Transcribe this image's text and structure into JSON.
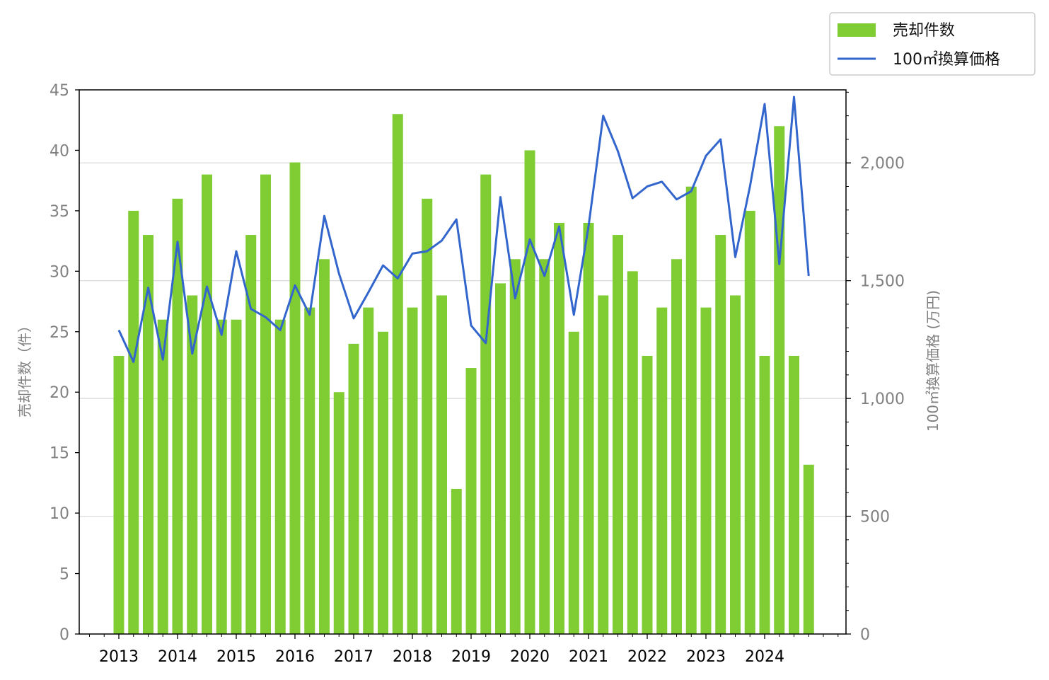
{
  "chart_data": {
    "type": "bar+line",
    "x_tick_labels": [
      "2013",
      "2014",
      "2015",
      "2016",
      "2017",
      "2018",
      "2019",
      "2020",
      "2021",
      "2022",
      "2023",
      "2024"
    ],
    "left_axis": {
      "label": "売却件数（件）",
      "ylim": [
        0,
        45
      ],
      "ticks": [
        0,
        5,
        10,
        15,
        20,
        25,
        30,
        35,
        40,
        45
      ]
    },
    "right_axis": {
      "label": "100㎡換算価格 (万円)",
      "ylim": [
        0,
        2310
      ],
      "ticks": [
        0,
        500,
        1000,
        1500,
        2000
      ],
      "tick_labels": [
        "0",
        "500",
        "1,000",
        "1,500",
        "2,000"
      ]
    },
    "grid": "horizontal (right axis)",
    "legend_position": "top-right, outside plot",
    "series": [
      {
        "name": "売却件数",
        "kind": "bar",
        "axis": "left",
        "color": "#80cc33",
        "values": [
          23,
          35,
          33,
          26,
          36,
          28,
          38,
          26,
          26,
          33,
          38,
          26,
          39,
          27,
          31,
          20,
          24,
          27,
          25,
          43,
          27,
          36,
          28,
          12,
          22,
          38,
          29,
          31,
          40,
          31,
          34,
          25,
          34,
          28,
          33,
          30,
          23,
          27,
          31,
          37,
          27,
          33,
          28,
          35,
          23,
          42,
          23,
          14
        ]
      },
      {
        "name": "100㎡換算価格",
        "kind": "line",
        "axis": "right",
        "color": "#3366cc",
        "values": [
          1290,
          1155,
          1470,
          1165,
          1665,
          1190,
          1475,
          1270,
          1625,
          1380,
          1345,
          1290,
          1480,
          1355,
          1775,
          1530,
          1340,
          1450,
          1565,
          1510,
          1615,
          1625,
          1670,
          1760,
          1310,
          1235,
          1855,
          1425,
          1675,
          1520,
          1730,
          1355,
          1730,
          2200,
          2050,
          1850,
          1900,
          1920,
          1845,
          1880,
          2030,
          2100,
          1600,
          1900,
          2250,
          1570,
          2280,
          1520
        ]
      }
    ]
  }
}
